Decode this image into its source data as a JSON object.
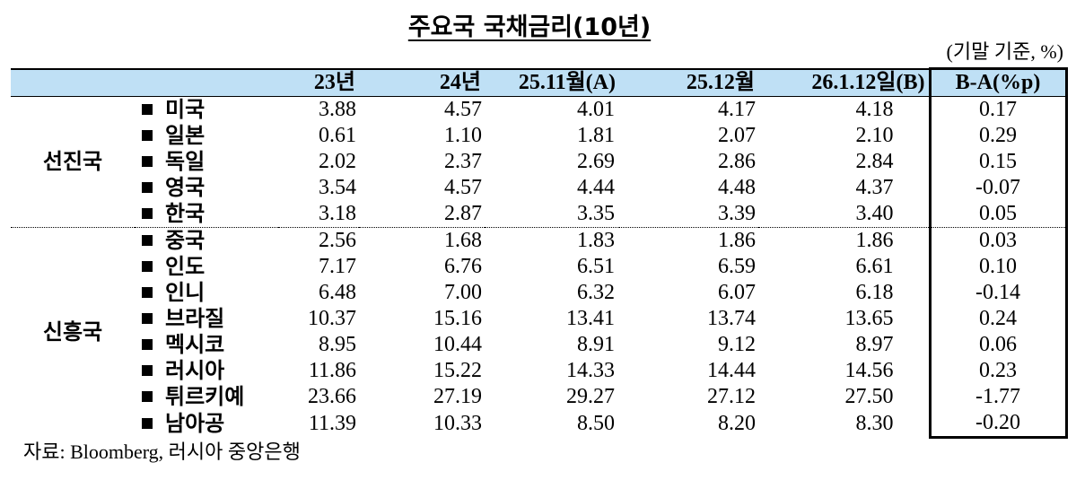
{
  "title": "주요국 국채금리(10년)",
  "unit": "(기말 기준, %)",
  "table": {
    "columns": [
      "23년",
      "24년",
      "25.11월(A)",
      "25.12월",
      "26.1.12일(B)",
      "B-A(%p)"
    ],
    "groups": [
      {
        "name": "선진국",
        "rows": [
          {
            "country": "미국",
            "values": [
              "3.88",
              "4.57",
              "4.01",
              "4.17",
              "4.18",
              "0.17"
            ]
          },
          {
            "country": "일본",
            "values": [
              "0.61",
              "1.10",
              "1.81",
              "2.07",
              "2.10",
              "0.29"
            ]
          },
          {
            "country": "독일",
            "values": [
              "2.02",
              "2.37",
              "2.69",
              "2.86",
              "2.84",
              "0.15"
            ]
          },
          {
            "country": "영국",
            "values": [
              "3.54",
              "4.57",
              "4.44",
              "4.48",
              "4.37",
              "-0.07"
            ]
          },
          {
            "country": "한국",
            "values": [
              "3.18",
              "2.87",
              "3.35",
              "3.39",
              "3.40",
              "0.05"
            ]
          }
        ]
      },
      {
        "name": "신흥국",
        "rows": [
          {
            "country": "중국",
            "values": [
              "2.56",
              "1.68",
              "1.83",
              "1.86",
              "1.86",
              "0.03"
            ]
          },
          {
            "country": "인도",
            "values": [
              "7.17",
              "6.76",
              "6.51",
              "6.59",
              "6.61",
              "0.10"
            ]
          },
          {
            "country": "인니",
            "values": [
              "6.48",
              "7.00",
              "6.32",
              "6.07",
              "6.18",
              "-0.14"
            ]
          },
          {
            "country": "브라질",
            "values": [
              "10.37",
              "15.16",
              "13.41",
              "13.74",
              "13.65",
              "0.24"
            ]
          },
          {
            "country": "멕시코",
            "values": [
              "8.95",
              "10.44",
              "8.91",
              "9.12",
              "8.97",
              "0.06"
            ]
          },
          {
            "country": "러시아",
            "values": [
              "11.86",
              "15.22",
              "14.33",
              "14.44",
              "14.56",
              "0.23"
            ]
          },
          {
            "country": "튀르키예",
            "values": [
              "23.66",
              "27.19",
              "29.27",
              "27.12",
              "27.50",
              "-1.77"
            ]
          },
          {
            "country": "남아공",
            "values": [
              "11.39",
              "10.33",
              "8.50",
              "8.20",
              "8.30",
              "-0.20"
            ]
          }
        ]
      }
    ]
  },
  "source": "자료: Bloomberg, 러시아 중앙은행"
}
